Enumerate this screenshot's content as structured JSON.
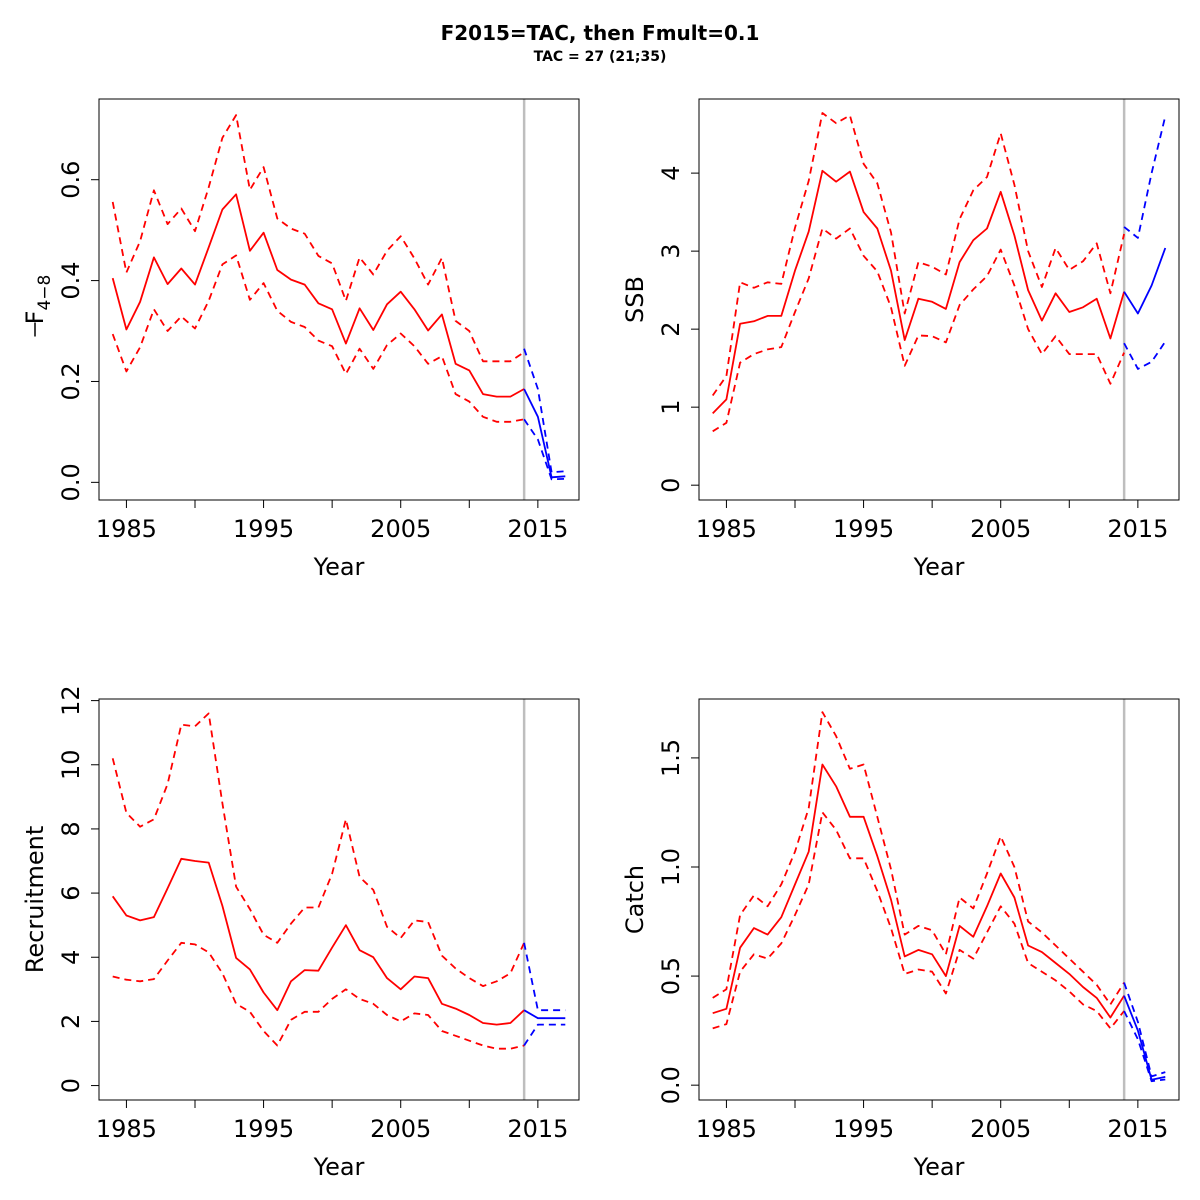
{
  "title": "F2015=TAC, then Fmult=0.1",
  "subtitle": "TAC = 27 (21;35)",
  "colors": {
    "historical": "#ff0000",
    "projection": "#0000ff",
    "divider": "#bebebe"
  },
  "chart_data": [
    {
      "type": "line",
      "ylabel": "F",
      "ylabel_sub": "4−8",
      "xlabel": "Year",
      "xlim": [
        1983,
        2018
      ],
      "ylim": [
        -0.035,
        0.76
      ],
      "x_ticks": [
        1985,
        1990,
        1995,
        2000,
        2005,
        2010,
        2015
      ],
      "x_tick_labels": [
        "1985",
        "",
        "1995",
        "",
        "2005",
        "",
        "2015"
      ],
      "y_ticks": [
        0.0,
        0.2,
        0.4,
        0.6
      ],
      "y_tick_labels": [
        "0.0",
        "0.2",
        "0.4",
        "0.6"
      ],
      "divider_x": 2014,
      "historical": {
        "x": [
          1984,
          1985,
          1986,
          1987,
          1988,
          1989,
          1990,
          1991,
          1992,
          1993,
          1994,
          1995,
          1996,
          1997,
          1998,
          1999,
          2000,
          2001,
          2002,
          2003,
          2004,
          2005,
          2006,
          2007,
          2008,
          2009,
          2010,
          2011,
          2012,
          2013,
          2014
        ],
        "median": [
          0.405,
          0.303,
          0.358,
          0.446,
          0.393,
          0.424,
          0.392,
          0.466,
          0.541,
          0.571,
          0.459,
          0.495,
          0.421,
          0.402,
          0.392,
          0.355,
          0.343,
          0.275,
          0.345,
          0.302,
          0.353,
          0.378,
          0.343,
          0.301,
          0.333,
          0.235,
          0.222,
          0.175,
          0.17,
          0.17,
          0.185
        ],
        "upper": [
          0.556,
          0.416,
          0.478,
          0.579,
          0.512,
          0.543,
          0.498,
          0.585,
          0.683,
          0.728,
          0.58,
          0.625,
          0.523,
          0.503,
          0.493,
          0.449,
          0.434,
          0.36,
          0.446,
          0.412,
          0.459,
          0.488,
          0.444,
          0.392,
          0.445,
          0.32,
          0.3,
          0.24,
          0.24,
          0.24,
          0.258
        ],
        "lower": [
          0.294,
          0.22,
          0.268,
          0.343,
          0.3,
          0.329,
          0.305,
          0.36,
          0.432,
          0.45,
          0.362,
          0.395,
          0.34,
          0.318,
          0.308,
          0.281,
          0.27,
          0.215,
          0.265,
          0.225,
          0.272,
          0.295,
          0.27,
          0.235,
          0.25,
          0.175,
          0.16,
          0.13,
          0.12,
          0.12,
          0.125
        ]
      },
      "projection": {
        "x": [
          2014,
          2015,
          2016,
          2017
        ],
        "median": [
          0.185,
          0.13,
          0.01,
          0.012
        ],
        "upper": [
          0.265,
          0.185,
          0.02,
          0.022
        ],
        "lower": [
          0.125,
          0.085,
          0.006,
          0.007
        ]
      }
    },
    {
      "type": "line",
      "ylabel": "SSB",
      "xlabel": "Year",
      "xlim": [
        1983,
        2018
      ],
      "ylim": [
        -0.19,
        4.95
      ],
      "x_ticks": [
        1985,
        1990,
        1995,
        2000,
        2005,
        2010,
        2015
      ],
      "x_tick_labels": [
        "1985",
        "",
        "1995",
        "",
        "2005",
        "",
        "2015"
      ],
      "y_ticks": [
        0,
        1,
        2,
        3,
        4
      ],
      "y_tick_labels": [
        "0",
        "1",
        "2",
        "3",
        "4"
      ],
      "divider_x": 2014,
      "historical": {
        "x": [
          1984,
          1985,
          1986,
          1987,
          1988,
          1989,
          1990,
          1991,
          1992,
          1993,
          1994,
          1995,
          1996,
          1997,
          1998,
          1999,
          2000,
          2001,
          2002,
          2003,
          2004,
          2005,
          2006,
          2007,
          2008,
          2009,
          2010,
          2011,
          2012,
          2013,
          2014
        ],
        "median": [
          0.92,
          1.1,
          2.07,
          2.1,
          2.17,
          2.17,
          2.75,
          3.25,
          4.03,
          3.89,
          4.02,
          3.5,
          3.29,
          2.75,
          1.86,
          2.39,
          2.35,
          2.26,
          2.86,
          3.14,
          3.29,
          3.76,
          3.2,
          2.5,
          2.11,
          2.46,
          2.22,
          2.28,
          2.39,
          1.88,
          2.48
        ],
        "upper": [
          1.15,
          1.4,
          2.6,
          2.53,
          2.6,
          2.58,
          3.3,
          3.9,
          4.77,
          4.64,
          4.74,
          4.12,
          3.87,
          3.24,
          2.2,
          2.86,
          2.8,
          2.7,
          3.41,
          3.78,
          3.95,
          4.51,
          3.85,
          3.0,
          2.54,
          3.04,
          2.76,
          2.87,
          3.1,
          2.46,
          3.22
        ],
        "lower": [
          0.69,
          0.8,
          1.57,
          1.68,
          1.74,
          1.77,
          2.22,
          2.65,
          3.29,
          3.16,
          3.29,
          2.94,
          2.74,
          2.28,
          1.53,
          1.92,
          1.91,
          1.83,
          2.31,
          2.51,
          2.68,
          3.02,
          2.56,
          2.0,
          1.68,
          1.91,
          1.68,
          1.68,
          1.68,
          1.3,
          1.7
        ]
      },
      "projection": {
        "x": [
          2014,
          2015,
          2016,
          2017
        ],
        "median": [
          2.48,
          2.2,
          2.56,
          3.04
        ],
        "upper": [
          3.31,
          3.17,
          4.0,
          4.73
        ],
        "lower": [
          1.82,
          1.49,
          1.58,
          1.84
        ]
      }
    },
    {
      "type": "line",
      "ylabel": "Recruitment",
      "xlabel": "Year",
      "xlim": [
        1983,
        2018
      ],
      "ylim": [
        -0.45,
        12.05
      ],
      "x_ticks": [
        1985,
        1990,
        1995,
        2000,
        2005,
        2010,
        2015
      ],
      "x_tick_labels": [
        "1985",
        "",
        "1995",
        "",
        "2005",
        "",
        "2015"
      ],
      "y_ticks": [
        0,
        2,
        4,
        6,
        8,
        10,
        12
      ],
      "y_tick_labels": [
        "0",
        "2",
        "4",
        "6",
        "8",
        "10",
        "12"
      ],
      "divider_x": 2014,
      "historical": {
        "x": [
          1984,
          1985,
          1986,
          1987,
          1988,
          1989,
          1990,
          1991,
          1992,
          1993,
          1994,
          1995,
          1996,
          1997,
          1998,
          1999,
          2000,
          2001,
          2002,
          2003,
          2004,
          2005,
          2006,
          2007,
          2008,
          2009,
          2010,
          2011,
          2012,
          2013,
          2014
        ],
        "median": [
          5.9,
          5.3,
          5.15,
          5.25,
          6.15,
          7.07,
          7.0,
          6.95,
          5.6,
          3.98,
          3.62,
          2.9,
          2.35,
          3.25,
          3.6,
          3.58,
          4.3,
          5.0,
          4.22,
          4.0,
          3.35,
          3.0,
          3.4,
          3.35,
          2.55,
          2.4,
          2.2,
          1.95,
          1.9,
          1.95,
          2.35
        ],
        "upper": [
          10.2,
          8.5,
          8.07,
          8.3,
          9.4,
          11.25,
          11.2,
          11.6,
          8.8,
          6.2,
          5.5,
          4.7,
          4.45,
          5.05,
          5.55,
          5.55,
          6.6,
          8.3,
          6.5,
          6.1,
          4.95,
          4.6,
          5.15,
          5.1,
          4.05,
          3.65,
          3.35,
          3.1,
          3.25,
          3.5,
          4.45
        ],
        "lower": [
          3.4,
          3.3,
          3.25,
          3.32,
          3.9,
          4.45,
          4.4,
          4.15,
          3.5,
          2.55,
          2.3,
          1.7,
          1.25,
          2.05,
          2.3,
          2.3,
          2.7,
          3.0,
          2.7,
          2.55,
          2.2,
          2.0,
          2.25,
          2.2,
          1.7,
          1.55,
          1.4,
          1.25,
          1.15,
          1.15,
          1.25
        ]
      },
      "projection": {
        "x": [
          2014,
          2015,
          2016,
          2017
        ],
        "median": [
          2.35,
          2.1,
          2.1,
          2.1
        ],
        "upper": [
          4.45,
          2.35,
          2.35,
          2.35
        ],
        "lower": [
          1.25,
          1.9,
          1.9,
          1.9
        ]
      }
    },
    {
      "type": "line",
      "ylabel": "Catch",
      "xlabel": "Year",
      "xlim": [
        1983,
        2018
      ],
      "ylim": [
        -0.068,
        1.77
      ],
      "x_ticks": [
        1985,
        1990,
        1995,
        2000,
        2005,
        2010,
        2015
      ],
      "x_tick_labels": [
        "1985",
        "",
        "1995",
        "",
        "2005",
        "",
        "2015"
      ],
      "y_ticks": [
        0.0,
        0.5,
        1.0,
        1.5
      ],
      "y_tick_labels": [
        "0.0",
        "0.5",
        "1.0",
        "1.5"
      ],
      "divider_x": 2014,
      "historical": {
        "x": [
          1984,
          1985,
          1986,
          1987,
          1988,
          1989,
          1990,
          1991,
          1992,
          1993,
          1994,
          1995,
          1996,
          1997,
          1998,
          1999,
          2000,
          2001,
          2002,
          2003,
          2004,
          2005,
          2006,
          2007,
          2008,
          2009,
          2010,
          2011,
          2012,
          2013,
          2014
        ],
        "median": [
          0.33,
          0.35,
          0.63,
          0.72,
          0.69,
          0.77,
          0.92,
          1.07,
          1.47,
          1.37,
          1.23,
          1.23,
          1.05,
          0.85,
          0.59,
          0.62,
          0.6,
          0.5,
          0.73,
          0.68,
          0.82,
          0.97,
          0.86,
          0.64,
          0.61,
          0.56,
          0.51,
          0.45,
          0.4,
          0.31,
          0.41
        ],
        "upper": [
          0.4,
          0.44,
          0.78,
          0.87,
          0.82,
          0.92,
          1.07,
          1.27,
          1.71,
          1.6,
          1.45,
          1.47,
          1.23,
          0.99,
          0.69,
          0.73,
          0.71,
          0.6,
          0.86,
          0.81,
          0.97,
          1.14,
          1.0,
          0.75,
          0.7,
          0.64,
          0.58,
          0.52,
          0.46,
          0.37,
          0.47
        ],
        "lower": [
          0.26,
          0.28,
          0.52,
          0.6,
          0.58,
          0.65,
          0.78,
          0.92,
          1.25,
          1.17,
          1.04,
          1.04,
          0.89,
          0.72,
          0.51,
          0.53,
          0.52,
          0.42,
          0.62,
          0.58,
          0.7,
          0.82,
          0.74,
          0.56,
          0.52,
          0.48,
          0.43,
          0.37,
          0.34,
          0.26,
          0.34
        ]
      },
      "projection": {
        "x": [
          2014,
          2015,
          2016,
          2017
        ],
        "median": [
          0.41,
          0.25,
          0.025,
          0.038
        ],
        "upper": [
          0.47,
          0.29,
          0.04,
          0.06
        ],
        "lower": [
          0.34,
          0.21,
          0.018,
          0.026
        ]
      }
    }
  ]
}
